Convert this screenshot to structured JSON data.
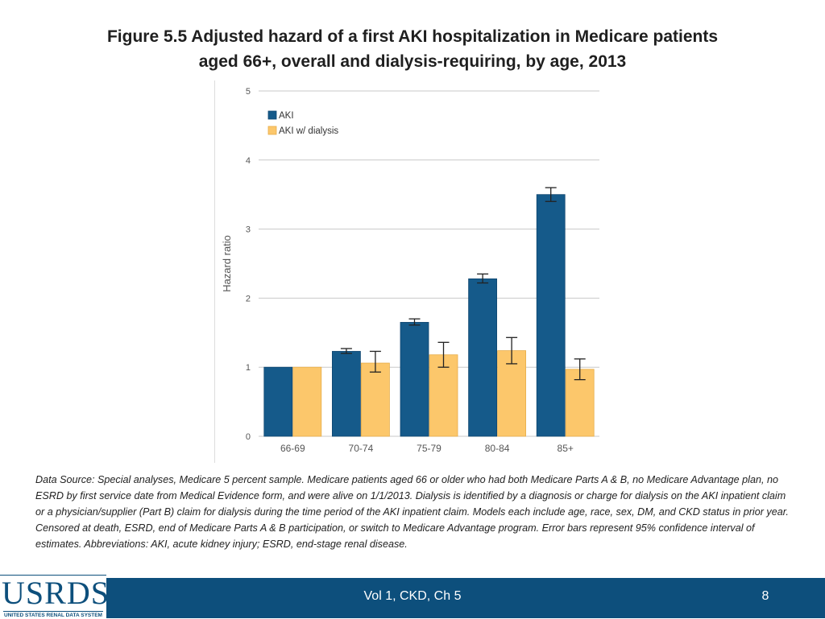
{
  "slide": {
    "title_line1": "Figure 5.5  Adjusted hazard of a first AKI hospitalization in Medicare patients",
    "title_line2": "aged 66+, overall and dialysis-requiring, by age, 2013",
    "data_source": "Data Source: Special analyses, Medicare 5 percent sample. Medicare patients aged 66 or older who had both Medicare Parts A & B, no Medicare Advantage plan, no ESRD by first service date from Medical Evidence form, and were alive on 1/1/2013. Dialysis is identified by a diagnosis or charge for dialysis on the AKI inpatient claim or a physician/supplier (Part B) claim for dialysis during the time period of the AKI inpatient claim. Models each include age, race, sex, DM, and CKD status in prior year. Censored at death, ESRD, end of Medicare Parts A & B participation, or switch to Medicare Advantage program. Error bars represent 95% confidence interval of estimates. Abbreviations: AKI, acute kidney injury; ESRD, end-stage renal disease."
  },
  "footer": {
    "logo_text": "USRDS",
    "logo_tagline": "UNITED STATES RENAL DATA SYSTEM",
    "center_label": "Vol 1, CKD, Ch 5",
    "page_number": "8"
  },
  "colors": {
    "aki": "#155a8a",
    "aki_dialysis": "#fcc76b",
    "footer": "#0d4f7c"
  },
  "chart_data": {
    "type": "bar",
    "title": "",
    "xlabel": "",
    "ylabel": "Hazard ratio",
    "ylim": [
      0,
      5
    ],
    "yticks": [
      "0",
      "1",
      "2",
      "3",
      "4",
      "5"
    ],
    "grid": true,
    "legend_position": "top-left",
    "categories": [
      "66-69",
      "70-74",
      "75-79",
      "80-84",
      "85+"
    ],
    "series": [
      {
        "name": "AKI",
        "color": "#155a8a",
        "values": [
          1.0,
          1.23,
          1.65,
          2.28,
          3.5
        ],
        "err_low": [
          null,
          1.2,
          1.61,
          2.22,
          3.4
        ],
        "err_high": [
          null,
          1.27,
          1.7,
          2.35,
          3.6
        ]
      },
      {
        "name": "AKI w/ dialysis",
        "color": "#fcc76b",
        "values": [
          1.0,
          1.06,
          1.18,
          1.24,
          0.97
        ],
        "err_low": [
          null,
          0.93,
          1.0,
          1.05,
          0.82
        ],
        "err_high": [
          null,
          1.23,
          1.36,
          1.43,
          1.12
        ]
      }
    ]
  }
}
